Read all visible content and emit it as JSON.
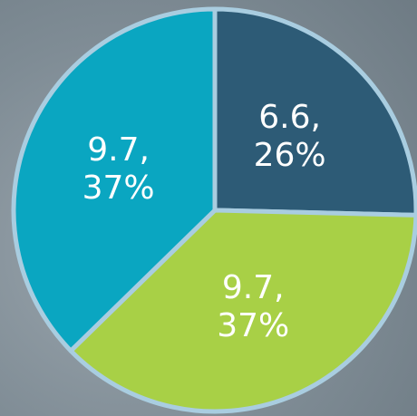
{
  "chart_data": {
    "type": "pie",
    "values": [
      6.6,
      9.7,
      9.7
    ],
    "value_labels": [
      "6.6,\n26%",
      "9.7,\n37%",
      "9.7,\n37%"
    ],
    "colors": [
      "#2d5b76",
      "#a8d046",
      "#0aa6c1"
    ],
    "start_angle": 0,
    "direction": "clockwise"
  }
}
